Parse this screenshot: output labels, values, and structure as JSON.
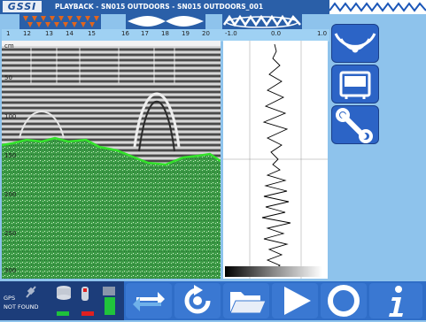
{
  "app": {
    "logo": "GSSI",
    "title": "PLAYBACK - SN015 OUTDOORS - SN015 OUTDOORS_001"
  },
  "scan": {
    "x_ticks": [
      "1",
      "12",
      "13",
      "14",
      "15",
      "16",
      "17",
      "18",
      "19",
      "20"
    ],
    "depth_unit": "cm",
    "depth_ticks": [
      "50",
      "100",
      "150",
      "200",
      "250",
      "300"
    ]
  },
  "trace": {
    "axis_ticks": [
      "-1.0",
      "0.0",
      "1.0"
    ]
  },
  "side": {
    "buttons": [
      "antenna-signal-icon",
      "display-mode-icon",
      "wrench-icon"
    ]
  },
  "status": {
    "gps_label": "GPS",
    "gps_status": "NOT FOUND"
  },
  "colors": {
    "accent": "#2c64c6",
    "background": "#8ec3ec",
    "ground_layer": "#3fa14a",
    "horizon_line": "#33e22a"
  }
}
